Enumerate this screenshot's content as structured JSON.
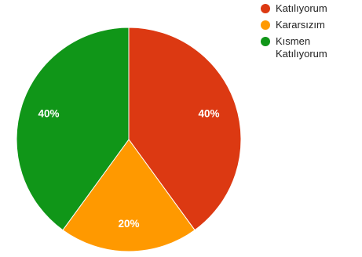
{
  "chart_data": {
    "type": "pie",
    "categories": [
      "Katılıyorum",
      "Kararsızım",
      "Kısmen Katılıyorum"
    ],
    "values": [
      40,
      20,
      40
    ],
    "value_labels": [
      "40%",
      "20%",
      "40%"
    ],
    "colors": [
      "#dc3912",
      "#ff9900",
      "#109618"
    ],
    "start_angle_deg": 0,
    "direction": "clockwise",
    "legend_position": "top-right"
  }
}
